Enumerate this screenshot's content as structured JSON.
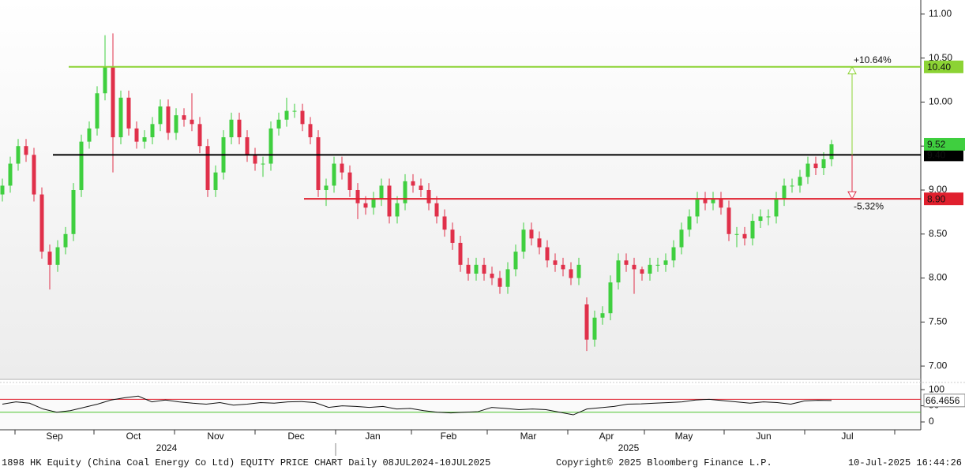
{
  "chart_data": {
    "type": "candlestick",
    "title": "1898 HK Equity (China Coal Energy Co Ltd) EQUITY PRICE CHART  Daily 08JUL2024-10JUL2025",
    "copyright": "Copyright© 2025 Bloomberg Finance L.P.",
    "timestamp": "10-Jul-2025 16:44:26",
    "months": [
      "Sep",
      "Oct",
      "Nov",
      "Dec",
      "Jan",
      "Feb",
      "Mar",
      "Apr",
      "May",
      "Jun",
      "Jul"
    ],
    "years": [
      "2024",
      "2025"
    ],
    "open": [
      8.95,
      9.05,
      9.3,
      9.5,
      9.4,
      8.95,
      8.3,
      8.15,
      8.35,
      8.5,
      9.0,
      9.55,
      9.7,
      10.1,
      10.4,
      9.6,
      10.05,
      9.7,
      9.55,
      9.6,
      9.75,
      9.95,
      9.65,
      9.85,
      9.8,
      9.75,
      9.5,
      9.0,
      9.2,
      9.6,
      9.8,
      9.6,
      9.4,
      9.3,
      9.3,
      9.7,
      9.8,
      9.9,
      9.9,
      9.75,
      9.6,
      9.0,
      9.05,
      9.3,
      9.2,
      9.0,
      8.85,
      8.8,
      8.9,
      9.05,
      8.7,
      8.85,
      9.1,
      9.05,
      9.0,
      8.85,
      8.7,
      8.55,
      8.4,
      8.15,
      8.05,
      8.15,
      8.05,
      8.0,
      7.9,
      8.1,
      8.3,
      8.55,
      8.45,
      8.35,
      8.2,
      8.15,
      8.1,
      8.0,
      7.7,
      7.3,
      7.55,
      7.6,
      7.95,
      8.2,
      8.15,
      8.1,
      8.05,
      8.15,
      8.15,
      8.2,
      8.35,
      8.55,
      8.7,
      8.9,
      8.85,
      8.9,
      8.8,
      8.5,
      8.5,
      8.45,
      8.65,
      8.7,
      8.7,
      8.9,
      9.05,
      9.05,
      9.15,
      9.3,
      9.25,
      9.35
    ],
    "high": [
      9.13,
      9.38,
      9.58,
      9.58,
      9.48,
      9.03,
      8.38,
      8.43,
      8.58,
      9.08,
      9.63,
      9.78,
      10.18,
      10.76,
      10.78,
      10.13,
      10.13,
      9.78,
      9.68,
      9.83,
      10.03,
      10.03,
      9.93,
      9.93,
      10.1,
      9.83,
      9.58,
      9.28,
      9.68,
      9.88,
      9.88,
      9.68,
      9.48,
      9.38,
      9.78,
      9.88,
      10.05,
      9.98,
      9.98,
      9.83,
      9.68,
      9.13,
      9.38,
      9.38,
      9.28,
      9.08,
      8.93,
      8.98,
      9.13,
      9.13,
      8.93,
      9.18,
      9.18,
      9.13,
      9.08,
      8.93,
      8.78,
      8.63,
      8.48,
      8.23,
      8.23,
      8.23,
      8.13,
      8.08,
      8.18,
      8.38,
      8.63,
      8.63,
      8.53,
      8.43,
      8.28,
      8.23,
      8.18,
      8.23,
      7.78,
      7.63,
      7.68,
      8.03,
      8.28,
      8.28,
      8.23,
      8.13,
      8.23,
      8.23,
      8.28,
      8.43,
      8.63,
      8.78,
      8.98,
      8.98,
      8.98,
      8.98,
      8.88,
      8.58,
      8.58,
      8.73,
      8.78,
      8.78,
      8.98,
      9.13,
      9.13,
      9.23,
      9.38,
      9.38,
      9.43,
      9.57
    ],
    "low": [
      8.87,
      8.97,
      9.22,
      9.32,
      8.87,
      8.22,
      7.87,
      8.07,
      8.27,
      8.42,
      8.92,
      9.47,
      9.62,
      10.02,
      9.2,
      9.52,
      9.62,
      9.47,
      9.47,
      9.52,
      9.67,
      9.57,
      9.57,
      9.72,
      9.67,
      9.42,
      8.92,
      8.92,
      9.12,
      9.52,
      9.52,
      9.32,
      9.22,
      9.15,
      9.22,
      9.62,
      9.72,
      9.82,
      9.67,
      9.52,
      8.92,
      8.82,
      8.97,
      9.12,
      8.92,
      8.67,
      8.72,
      8.72,
      8.82,
      8.62,
      8.62,
      8.77,
      8.97,
      8.92,
      8.77,
      8.62,
      8.47,
      8.32,
      8.07,
      7.97,
      7.97,
      7.97,
      7.92,
      7.82,
      7.82,
      8.02,
      8.22,
      8.37,
      8.27,
      8.12,
      8.07,
      8.02,
      7.92,
      7.92,
      7.17,
      7.22,
      7.47,
      7.52,
      7.87,
      8.07,
      7.82,
      7.97,
      7.97,
      8.07,
      8.07,
      8.12,
      8.27,
      8.47,
      8.62,
      8.77,
      8.77,
      8.72,
      8.42,
      8.35,
      8.37,
      8.37,
      8.57,
      8.6,
      8.62,
      8.82,
      8.97,
      8.97,
      9.07,
      9.17,
      9.17,
      9.27
    ],
    "close": [
      9.05,
      9.3,
      9.5,
      9.4,
      8.95,
      8.3,
      8.15,
      8.35,
      8.5,
      9.0,
      9.55,
      9.7,
      10.1,
      10.4,
      9.6,
      10.05,
      9.7,
      9.55,
      9.6,
      9.75,
      9.95,
      9.65,
      9.85,
      9.8,
      9.75,
      9.5,
      9.0,
      9.2,
      9.6,
      9.8,
      9.6,
      9.4,
      9.3,
      9.3,
      9.7,
      9.8,
      9.9,
      9.9,
      9.75,
      9.6,
      9.0,
      9.05,
      9.3,
      9.2,
      9.0,
      8.85,
      8.8,
      8.9,
      9.05,
      8.7,
      8.85,
      9.1,
      9.05,
      9.0,
      8.85,
      8.7,
      8.55,
      8.4,
      8.15,
      8.05,
      8.15,
      8.05,
      8.0,
      7.9,
      8.1,
      8.3,
      8.55,
      8.45,
      8.35,
      8.2,
      8.15,
      8.1,
      8.0,
      8.15,
      7.3,
      7.55,
      7.6,
      7.95,
      8.2,
      8.15,
      8.1,
      8.05,
      8.15,
      8.15,
      8.2,
      8.35,
      8.55,
      8.7,
      8.9,
      8.85,
      8.9,
      8.8,
      8.5,
      8.5,
      8.45,
      8.65,
      8.7,
      8.7,
      8.9,
      9.05,
      9.05,
      9.15,
      9.3,
      9.25,
      9.35,
      9.52
    ],
    "up_color": "#3fcf3f",
    "down_color": "#e0304a",
    "ylim": [
      6.84,
      11.16
    ],
    "yticks": [
      {
        "value": 7,
        "label": "7.00"
      },
      {
        "value": 7.5,
        "label": "7.50"
      },
      {
        "value": 8,
        "label": "8.00"
      },
      {
        "value": 8.5,
        "label": "8.50"
      },
      {
        "value": 9,
        "label": "9.00"
      },
      {
        "value": 9.5,
        "label": "9.50"
      },
      {
        "value": 10,
        "label": "10.00"
      },
      {
        "value": 10.5,
        "label": "10.50"
      },
      {
        "value": 11,
        "label": "11.00"
      }
    ],
    "last_price": 9.52,
    "levels": [
      {
        "value": 10.4,
        "label": "10.40",
        "color": "#8cd334"
      },
      {
        "value": 9.4,
        "label": "9.40",
        "color": "#000000"
      },
      {
        "value": 8.9,
        "label": "8.90",
        "color": "#e0202e"
      }
    ],
    "annotations": [
      {
        "text": "+10.64%",
        "color": "#8cd334"
      },
      {
        "text": "-5.32%",
        "color": "#e0304a"
      }
    ],
    "rsi": {
      "values": [
        55,
        62,
        58,
        40,
        30,
        35,
        45,
        55,
        68,
        75,
        80,
        62,
        68,
        62,
        58,
        55,
        60,
        52,
        55,
        60,
        58,
        62,
        63,
        60,
        45,
        50,
        48,
        45,
        48,
        40,
        42,
        35,
        30,
        28,
        30,
        32,
        45,
        42,
        38,
        40,
        38,
        30,
        22,
        40,
        44,
        48,
        55,
        56,
        58,
        60,
        62,
        68,
        70,
        66,
        62,
        58,
        62,
        60,
        55,
        65,
        67,
        66.4656
      ],
      "ylim": [
        -17,
        110
      ],
      "yticks": [
        0,
        50,
        100
      ],
      "levels": [
        {
          "value": 70,
          "color": "#e0202e"
        },
        {
          "value": 30,
          "color": "#4bc42b"
        }
      ]
    }
  }
}
